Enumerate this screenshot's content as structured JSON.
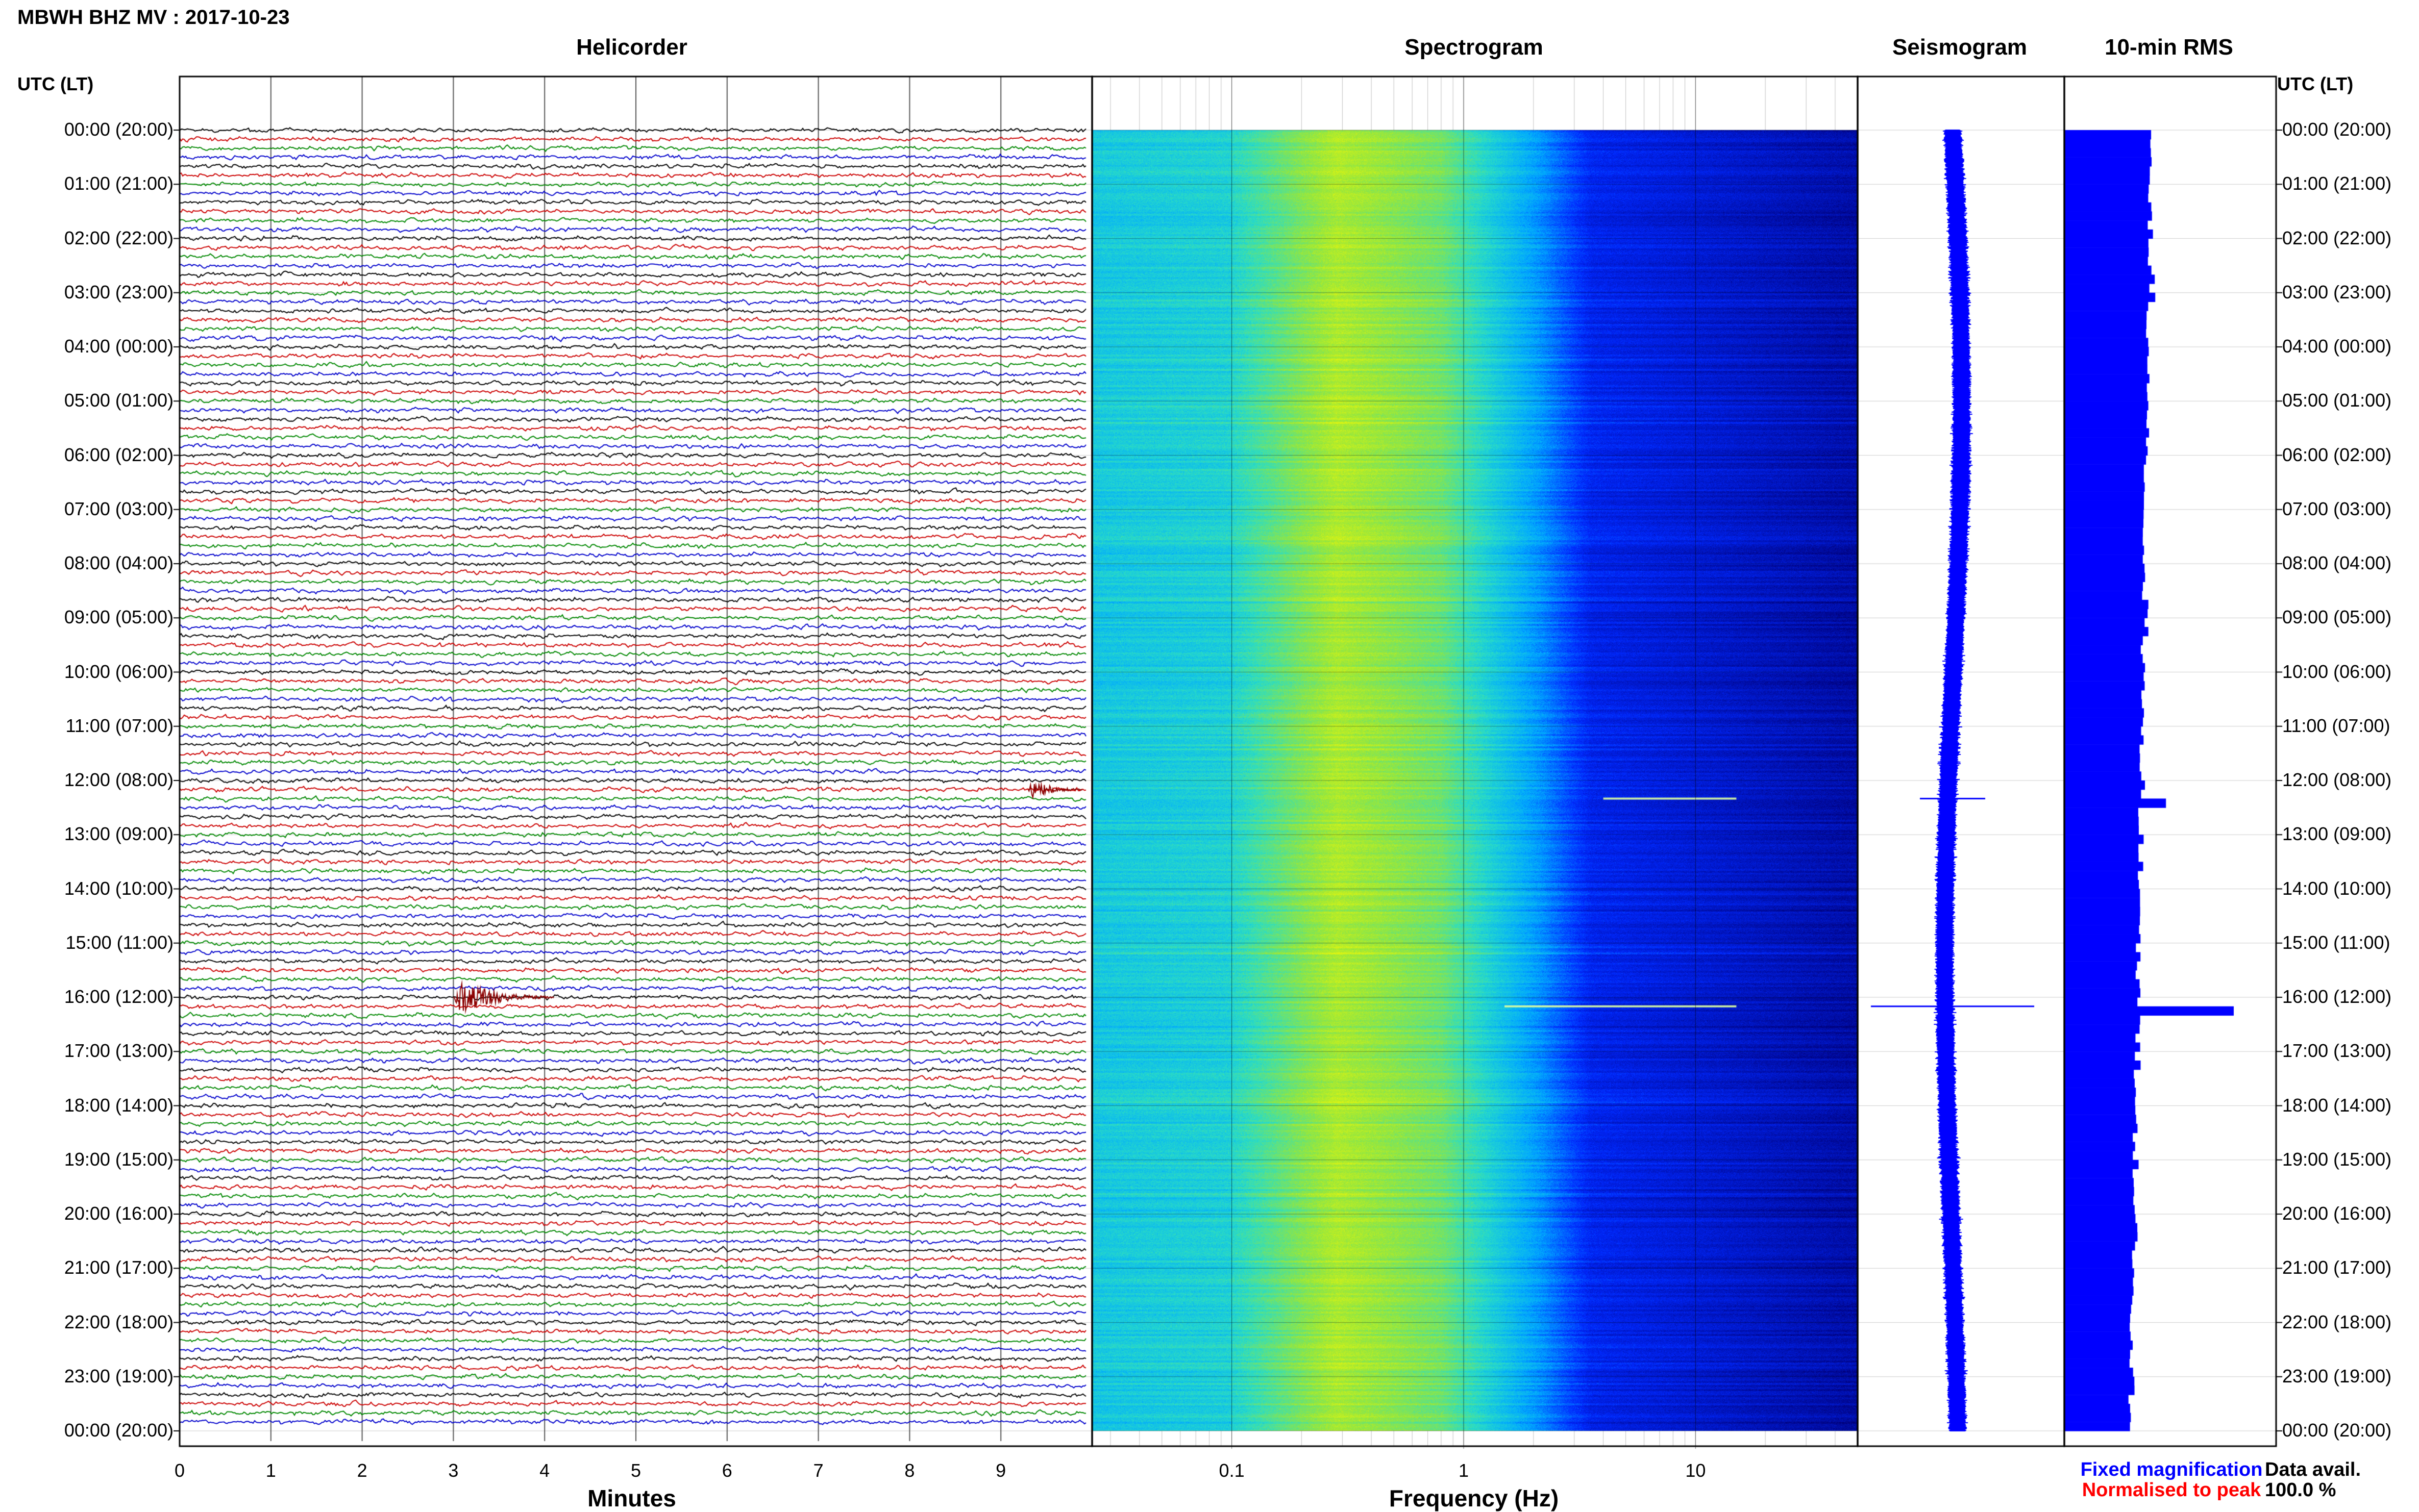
{
  "header": {
    "station_title": "MBWH BHZ MV : 2017-10-23",
    "utc_label_left": "UTC (LT)",
    "utc_label_right": "UTC (LT)"
  },
  "panels": {
    "helicorder": "Helicorder",
    "spectrogram": "Spectrogram",
    "seismogram": "Seismogram",
    "rms": "10-min RMS"
  },
  "time_labels": [
    "00:00 (20:00)",
    "01:00 (21:00)",
    "02:00 (22:00)",
    "03:00 (23:00)",
    "04:00 (00:00)",
    "05:00 (01:00)",
    "06:00 (02:00)",
    "07:00 (03:00)",
    "08:00 (04:00)",
    "09:00 (05:00)",
    "10:00 (06:00)",
    "11:00 (07:00)",
    "12:00 (08:00)",
    "13:00 (09:00)",
    "14:00 (10:00)",
    "15:00 (11:00)",
    "16:00 (12:00)",
    "17:00 (13:00)",
    "18:00 (14:00)",
    "19:00 (15:00)",
    "20:00 (16:00)",
    "21:00 (17:00)",
    "22:00 (18:00)",
    "23:00 (19:00)",
    "00:00 (20:00)"
  ],
  "footer": {
    "fixed_magnification": "Fixed magnification",
    "normalised_to_peak": "Normalised to peak",
    "data_avail_label": "Data avail.",
    "data_avail_value": "100.0 %"
  },
  "colors": {
    "helicorder_trace_cycle": [
      "#000000",
      "#cc0000",
      "#008800",
      "#0000cc"
    ],
    "event_trace": "#8b0000",
    "seismogram": "#0000ff",
    "rms_bars": "#0000ff",
    "fixed_magnification_text": "#0000ff",
    "normalised_to_peak_text": "#ff0000",
    "spectrogram_low": "#00008b",
    "spectrogram_mid": "#00bfff",
    "spectrogram_high": "#ffff00"
  },
  "chart_data": [
    {
      "type": "line",
      "title": "Helicorder",
      "xlabel": "Minutes",
      "x_ticks": [
        "0",
        "1",
        "2",
        "3",
        "4",
        "5",
        "6",
        "7",
        "8",
        "9"
      ],
      "xlim": [
        0,
        10
      ],
      "rows_per_hour": 6,
      "hours": 24,
      "events": [
        {
          "hour": 12,
          "row": 1,
          "minute_start": 9.3,
          "minute_end": 9.9,
          "amplitude": "moderate"
        },
        {
          "hour": 16,
          "row": 0,
          "minute_start": 3.0,
          "minute_end": 4.1,
          "amplitude": "large"
        }
      ]
    },
    {
      "type": "heatmap",
      "title": "Spectrogram",
      "xlabel": "Frequency (Hz)",
      "x_scale": "log",
      "x_ticks": [
        "0.1",
        "1",
        "10"
      ],
      "xlim": [
        0.025,
        50
      ],
      "y": "time 00:00 to 24:00 UTC",
      "features": [
        {
          "time_utc": "12:20",
          "frequency_range_hz": [
            4,
            15
          ],
          "description": "brief broadband line"
        },
        {
          "time_utc": "16:10",
          "frequency_range_hz": [
            1.5,
            15
          ],
          "description": "brief broadband line"
        }
      ]
    },
    {
      "type": "line",
      "title": "Seismogram",
      "y": "time 00:00 to 24:00 UTC",
      "spikes": [
        {
          "time_utc": "12:20",
          "relative_amplitude": 0.4
        },
        {
          "time_utc": "16:10",
          "relative_amplitude": 1.0
        }
      ]
    },
    {
      "type": "bar",
      "title": "10-min RMS",
      "orientation": "horizontal",
      "bins": 144,
      "baseline_relative": 0.4,
      "peaks": [
        {
          "time_utc": "12:20",
          "relative_value": 0.48
        },
        {
          "time_utc": "16:10",
          "relative_value": 0.8
        }
      ]
    }
  ]
}
